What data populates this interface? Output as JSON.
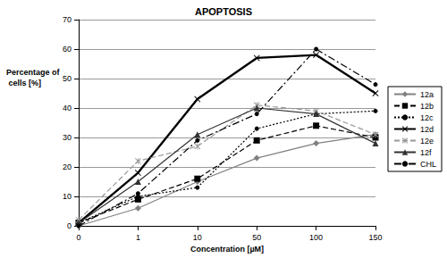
{
  "chart_data": {
    "type": "line",
    "title": "APOPTOSIS",
    "x_label": "Concentration [µM]",
    "y_label": "Percentage of cells [%]",
    "categories": [
      "0",
      "1",
      "10",
      "50",
      "100",
      "150"
    ],
    "ylim": [
      0,
      70
    ],
    "yticks": [
      0,
      10,
      20,
      30,
      40,
      50,
      60,
      70
    ],
    "grid": true,
    "legend": "right",
    "series": [
      {
        "name": "12a",
        "color": "#808080",
        "marker": "diamond",
        "line_style": "solid",
        "values": [
          0,
          6,
          15,
          23,
          28,
          31
        ]
      },
      {
        "name": "12b",
        "color": "#000000",
        "marker": "square",
        "line_style": "dashed",
        "values": [
          1,
          9,
          16,
          29,
          34,
          30
        ]
      },
      {
        "name": "12c",
        "color": "#000000",
        "marker": "circle",
        "line_style": "dotted",
        "values": [
          1,
          10,
          13,
          33,
          38,
          39
        ]
      },
      {
        "name": "12d",
        "color": "#000000",
        "marker": "x",
        "line_style": "thick",
        "values": [
          1,
          18,
          43,
          57,
          58,
          45
        ]
      },
      {
        "name": "12e",
        "color": "#999999",
        "marker": "asterisk",
        "line_style": "dashed",
        "values": [
          2,
          22,
          27,
          41,
          39,
          31
        ]
      },
      {
        "name": "12f",
        "color": "#333333",
        "marker": "triangle",
        "line_style": "solid",
        "values": [
          1,
          15,
          31,
          40,
          38,
          28
        ]
      },
      {
        "name": "CHL",
        "color": "#000000",
        "marker": "circle",
        "line_style": "dashdot",
        "values": [
          0,
          11,
          29,
          38,
          60,
          48
        ]
      }
    ]
  }
}
